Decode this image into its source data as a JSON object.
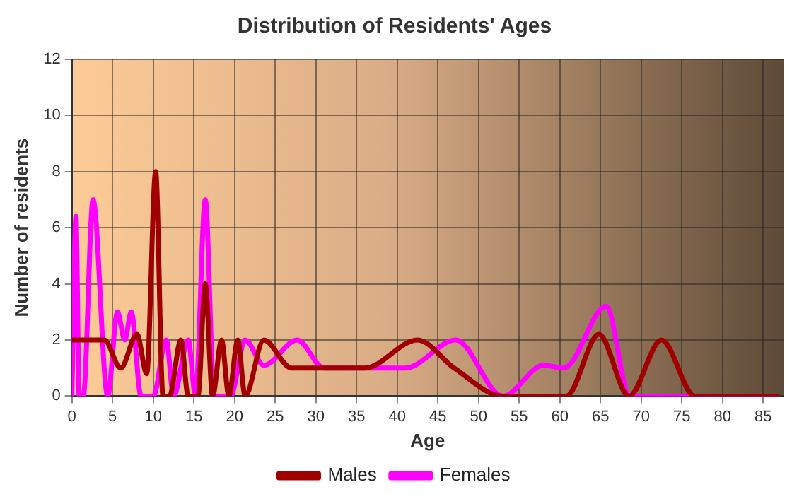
{
  "chart_data": {
    "type": "line",
    "title": "Distribution of Residents' Ages",
    "xlabel": "Age",
    "ylabel": "Number of residents",
    "xlim": [
      0,
      87.5
    ],
    "xticks": [
      0,
      5,
      10,
      15,
      20,
      25,
      30,
      35,
      40,
      45,
      50,
      55,
      60,
      65,
      70,
      75,
      80,
      85
    ],
    "ylim": [
      0,
      12
    ],
    "yticks": [
      0,
      2,
      4,
      6,
      8,
      10,
      12
    ],
    "grid": true,
    "legend": "bottom",
    "marker": "none",
    "line_style": "solid",
    "series": [
      {
        "name": "Males",
        "color": "#a00000",
        "x": [
          0,
          4,
          6,
          8,
          9.2,
          10.3,
          11.2,
          12,
          13.4,
          14.3,
          15.5,
          16.4,
          17.3,
          18.4,
          19.3,
          20.4,
          21.3,
          23.6,
          27,
          31,
          36,
          42.5,
          47,
          53,
          57,
          60.8,
          64.8,
          68.5,
          72.5,
          76.6,
          87
        ],
        "values": [
          2,
          2,
          1,
          2.2,
          0.8,
          8,
          0,
          0,
          2,
          0,
          0,
          4,
          0,
          2,
          0,
          2,
          0,
          2,
          1,
          1,
          1,
          2,
          1,
          0,
          0,
          0,
          2.2,
          0,
          2,
          0,
          0
        ]
      },
      {
        "name": "Females",
        "color": "#ff00ff",
        "x": [
          0,
          0.5,
          0.9,
          1.4,
          2.6,
          4.4,
          5.6,
          6.5,
          7.3,
          8.5,
          10,
          11.6,
          12.5,
          14.3,
          15.2,
          16.4,
          17.5,
          19.5,
          21.3,
          23.6,
          27.7,
          31,
          37,
          41,
          47.2,
          53,
          58,
          60.5,
          65.7,
          68.6,
          73,
          80,
          87
        ],
        "values": [
          0,
          6.4,
          0,
          0,
          7,
          0,
          3,
          2,
          3,
          0,
          0,
          2,
          0,
          2,
          0,
          7,
          0,
          0,
          2,
          1.1,
          2,
          1,
          1,
          1,
          2,
          0,
          1.1,
          1,
          3.2,
          0,
          0,
          0,
          0
        ]
      }
    ]
  }
}
